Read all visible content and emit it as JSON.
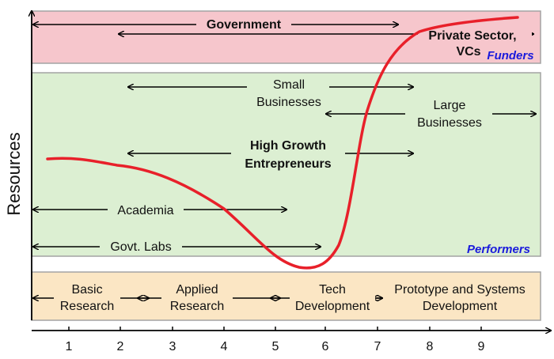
{
  "axes": {
    "y_label": "Resources",
    "x_ticks": [
      "1",
      "2",
      "3",
      "4",
      "5",
      "6",
      "7",
      "8",
      "9"
    ]
  },
  "bands": {
    "funders": {
      "label": "Funders",
      "color": "#f6c6cc"
    },
    "performers": {
      "label": "Performers",
      "color": "#dcefd2"
    },
    "stages": {
      "color": "#fbe6c4"
    }
  },
  "funders": {
    "government": "Government",
    "private_line1": "Private Sector,",
    "private_line2": "VCs"
  },
  "performers": {
    "small_line1": "Small",
    "small_line2": "Businesses",
    "large_line1": "Large",
    "large_line2": "Businesses",
    "hg_line1": "High Growth",
    "hg_line2": "Entrepreneurs",
    "academia": "Academia",
    "govt_labs": "Govt. Labs"
  },
  "stages": {
    "basic_line1": "Basic",
    "basic_line2": "Research",
    "applied_line1": "Applied",
    "applied_line2": "Research",
    "tech_line1": "Tech",
    "tech_line2": "Development",
    "proto_line1": "Prototype and Systems",
    "proto_line2": "Development"
  },
  "curve_color": "#e8202a"
}
